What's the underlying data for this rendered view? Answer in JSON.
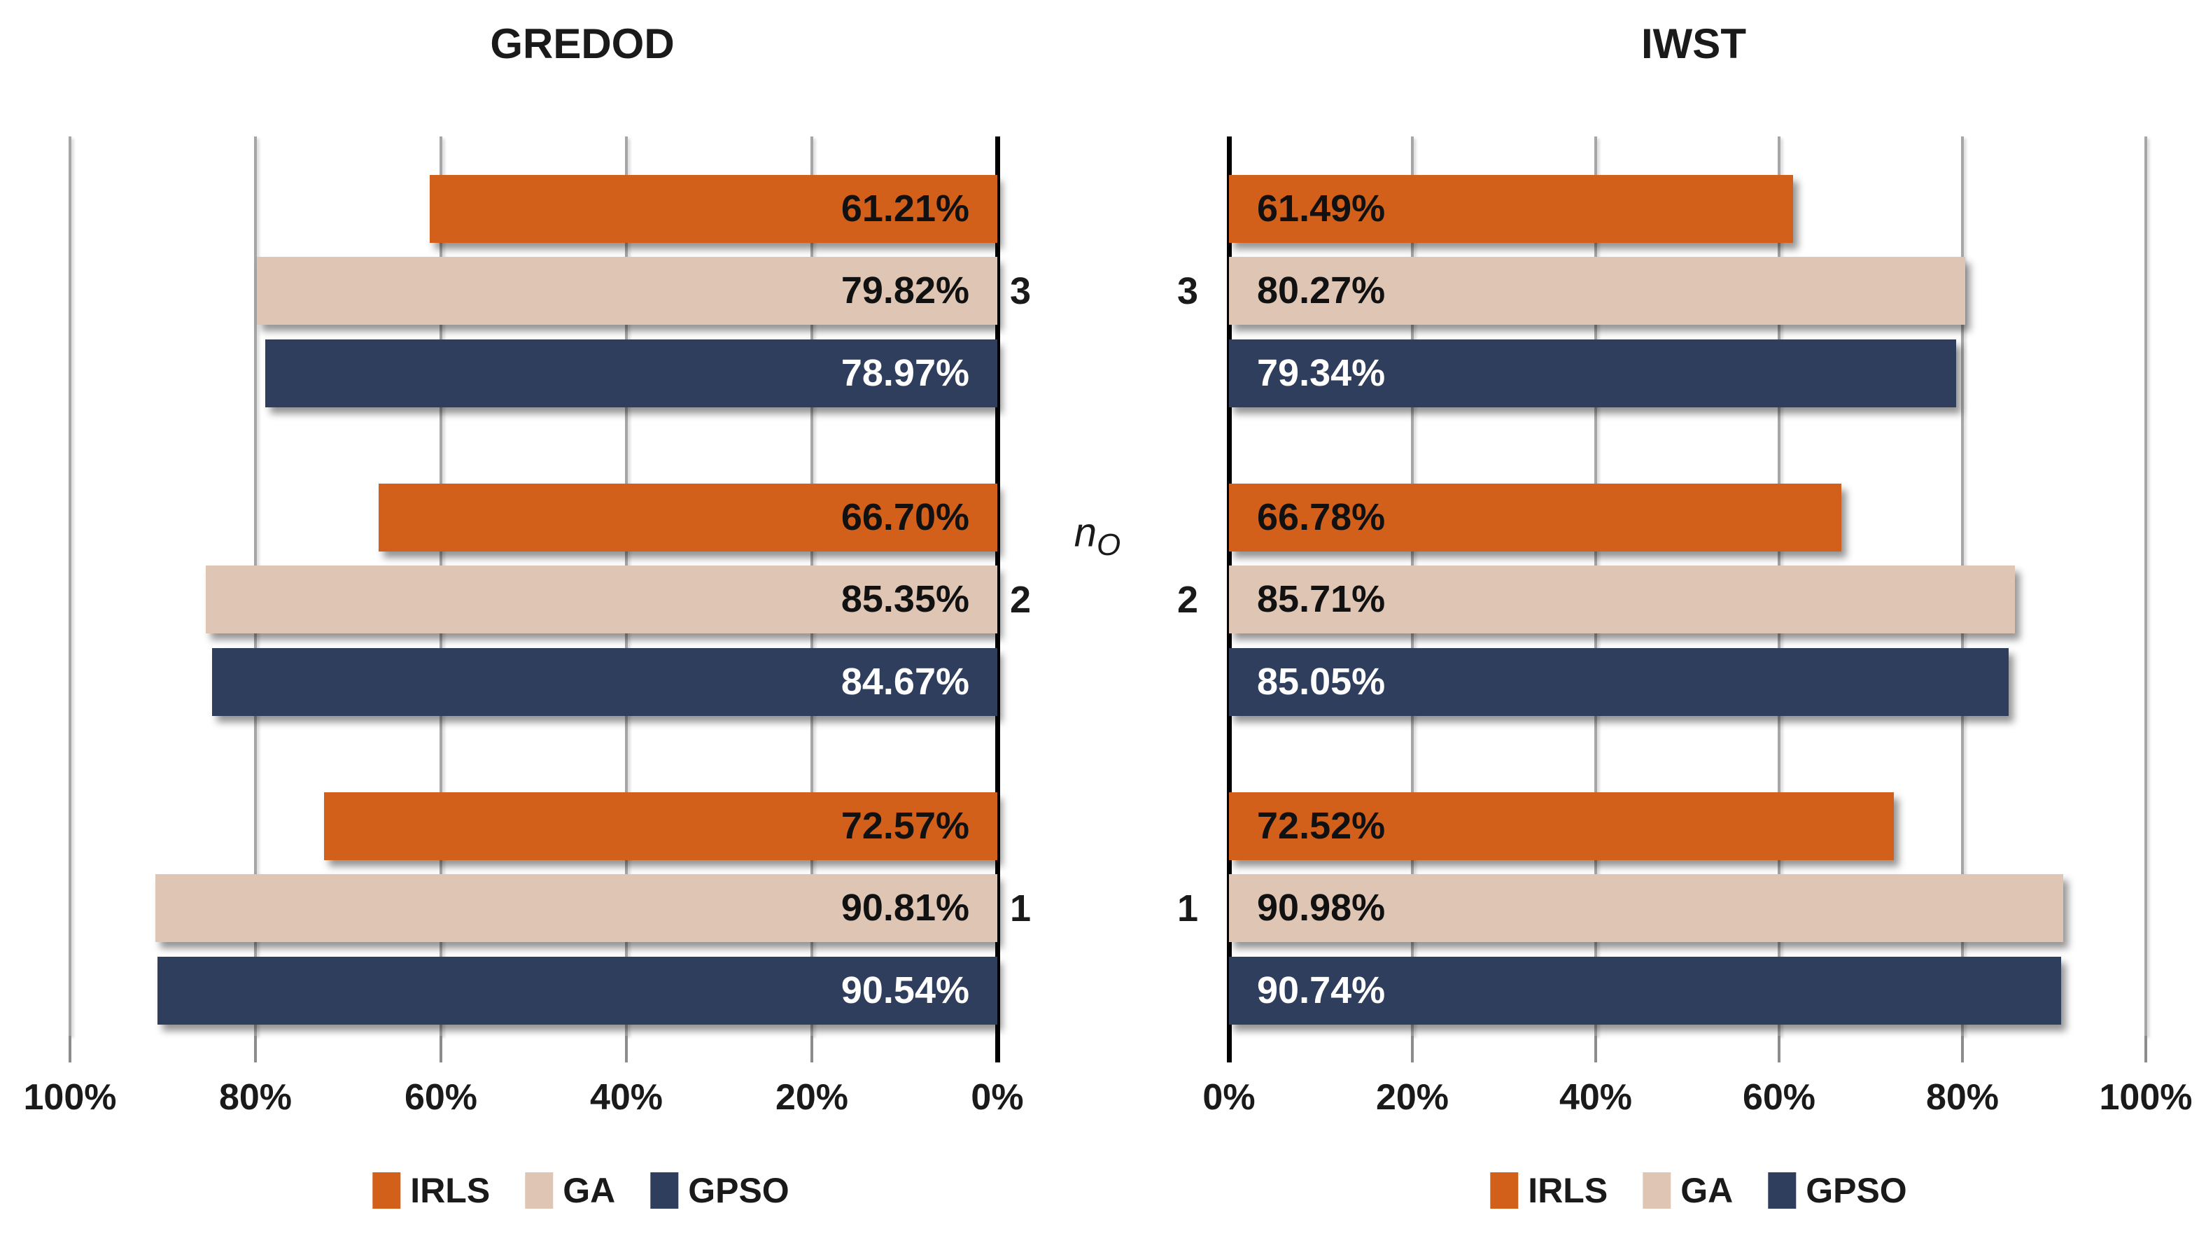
{
  "chart_data": {
    "type": "bar",
    "layout": "mirrored-horizontal-two-panels",
    "grid": true,
    "xlim": [
      0,
      100
    ],
    "x_tick_step_pct": 20,
    "categories": [
      "3",
      "2",
      "1"
    ],
    "center_axis_label": {
      "base": "n",
      "sub": "O"
    },
    "series": [
      {
        "name": "IRLS",
        "color": "#D2601A",
        "label_color": "#111111"
      },
      {
        "name": "GA",
        "color": "#DEC5B4",
        "label_color": "#111111"
      },
      {
        "name": "GPSO",
        "color": "#2F3E5D",
        "label_color": "#FFFFFF"
      }
    ],
    "panels": [
      {
        "title": "GREDOD",
        "bar_direction": "leftward",
        "axis_tick_labels": [
          "100%",
          "80%",
          "60%",
          "40%",
          "20%",
          "0%"
        ],
        "groups": [
          {
            "category": "3",
            "values": [
              61.21,
              79.82,
              78.97
            ],
            "value_labels": [
              "61.21%",
              "79.82%",
              "78.97%"
            ]
          },
          {
            "category": "2",
            "values": [
              66.7,
              85.35,
              84.67
            ],
            "value_labels": [
              "66.70%",
              "85.35%",
              "84.67%"
            ]
          },
          {
            "category": "1",
            "values": [
              72.57,
              90.81,
              90.54
            ],
            "value_labels": [
              "72.57%",
              "90.81%",
              "90.54%"
            ]
          }
        ]
      },
      {
        "title": "IWST",
        "bar_direction": "rightward",
        "axis_tick_labels": [
          "0%",
          "20%",
          "40%",
          "60%",
          "80%",
          "100%"
        ],
        "groups": [
          {
            "category": "3",
            "values": [
              61.49,
              80.27,
              79.34
            ],
            "value_labels": [
              "61.49%",
              "80.27%",
              "79.34%"
            ]
          },
          {
            "category": "2",
            "values": [
              66.78,
              85.71,
              85.05
            ],
            "value_labels": [
              "66.78%",
              "85.71%",
              "85.05%"
            ]
          },
          {
            "category": "1",
            "values": [
              72.52,
              90.98,
              90.74
            ],
            "value_labels": [
              "72.52%",
              "90.98%",
              "90.74%"
            ]
          }
        ]
      }
    ],
    "legend": {
      "position": "bottom",
      "entries": [
        "IRLS",
        "GA",
        "GPSO"
      ]
    }
  }
}
